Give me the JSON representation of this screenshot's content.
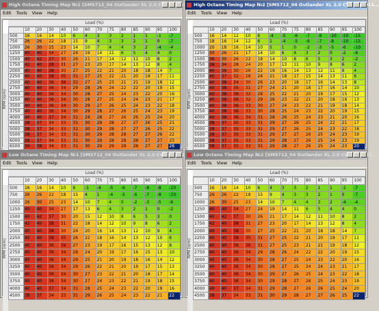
{
  "windows": [
    {
      "title": "High Octane Timing Map №1 [SMS712_04 Outlander XL 2.0 CVT MY2011...",
      "menu": [
        "Edit",
        "Tools",
        "View",
        "Help"
      ],
      "load_label": "Load (%)",
      "rpm_label": "RPM (rpm)",
      "columns": [
        10,
        20,
        30,
        40,
        50,
        60,
        70,
        75,
        80,
        85,
        90,
        95,
        100
      ],
      "rows": [
        500,
        750,
        1000,
        1250,
        1500,
        1750,
        2000,
        2250,
        2500,
        2750,
        3000,
        3250,
        3500,
        3750,
        4000,
        4500,
        5000,
        5500,
        6000,
        6500
      ],
      "values": [
        [
          16,
          16,
          14,
          10,
          6,
          4,
          3,
          3,
          2,
          1,
          1,
          -1,
          -7
        ],
        [
          26,
          26,
          22,
          18,
          15,
          9,
          4,
          3,
          3,
          2,
          1,
          0,
          -7
        ],
        [
          26,
          30,
          25,
          23,
          14,
          10,
          7,
          4,
          4,
          3,
          2,
          -4,
          -4
        ],
        [
          40,
          40,
          34,
          27,
          24,
          19,
          14,
          11,
          6,
          5,
          4,
          4,
          0
        ],
        [
          40,
          42,
          37,
          30,
          26,
          21,
          17,
          14,
          12,
          11,
          10,
          8,
          2
        ],
        [
          42,
          40,
          38,
          31,
          27,
          23,
          20,
          17,
          14,
          13,
          12,
          8,
          4
        ],
        [
          40,
          40,
          38,
          30,
          27,
          25,
          22,
          21,
          20,
          18,
          18,
          14,
          7
        ],
        [
          40,
          40,
          38,
          35,
          31,
          27,
          25,
          22,
          21,
          20,
          19,
          17,
          11
        ],
        [
          40,
          40,
          36,
          36,
          31,
          27,
          25,
          23,
          21,
          21,
          19,
          18,
          12
        ],
        [
          40,
          40,
          36,
          34,
          29,
          28,
          26,
          24,
          22,
          22,
          20,
          19,
          15
        ],
        [
          40,
          40,
          36,
          34,
          30,
          28,
          27,
          25,
          24,
          23,
          22,
          20,
          16
        ],
        [
          40,
          40,
          36,
          34,
          30,
          28,
          27,
          25,
          24,
          24,
          23,
          21,
          17
        ],
        [
          40,
          40,
          36,
          34,
          30,
          29,
          27,
          26,
          25,
          24,
          23,
          22,
          18
        ],
        [
          40,
          40,
          36,
          34,
          30,
          29,
          28,
          27,
          26,
          25,
          24,
          23,
          19
        ],
        [
          40,
          40,
          37,
          34,
          31,
          29,
          28,
          27,
          26,
          26,
          25,
          24,
          20
        ],
        [
          38,
          37,
          34,
          33,
          31,
          30,
          29,
          28,
          27,
          27,
          26,
          25,
          21
        ],
        [
          38,
          37,
          34,
          33,
          31,
          30,
          29,
          28,
          27,
          27,
          26,
          25,
          22
        ],
        [
          38,
          37,
          34,
          33,
          31,
          30,
          29,
          28,
          28,
          27,
          27,
          26,
          22
        ],
        [
          38,
          37,
          34,
          33,
          31,
          30,
          29,
          28,
          28,
          28,
          27,
          27,
          23
        ],
        [
          39,
          38,
          34,
          33,
          31,
          30,
          29,
          29,
          28,
          28,
          27,
          27,
          28
        ]
      ]
    },
    {
      "title": "High Octane Timing Map №2 [SMS712_04 Outlander XL 2.0 CVT MY2011...",
      "menu": [
        "Edit",
        "Tools",
        "View",
        "Help"
      ],
      "load_label": "Load (%)",
      "rpm_label": "RPM (rpm)",
      "columns": [
        10,
        20,
        30,
        40,
        50,
        60,
        70,
        75,
        80,
        85,
        90,
        95,
        100
      ],
      "rows": [
        500,
        750,
        1000,
        1250,
        1500,
        1750,
        2000,
        2250,
        2500,
        2750,
        3000,
        3250,
        3500,
        3750,
        4000,
        4500,
        5000,
        5500,
        6000,
        6500
      ],
      "values": [
        [
          16,
          14,
          12,
          10,
          6,
          -4,
          -5,
          -6,
          -7,
          -8,
          -10,
          -10,
          -15
        ],
        [
          18,
          16,
          14,
          12,
          6,
          1,
          -4,
          -5,
          -6,
          -7,
          -8,
          -10,
          -15
        ],
        [
          20,
          18,
          16,
          14,
          10,
          5,
          1,
          0,
          -2,
          -3,
          -5,
          -6,
          -10
        ],
        [
          30,
          26,
          21,
          17,
          14,
          10,
          6,
          4,
          3,
          2,
          0,
          -2,
          -6
        ],
        [
          36,
          30,
          26,
          22,
          18,
          14,
          10,
          8,
          6,
          5,
          3,
          2,
          -2
        ],
        [
          38,
          34,
          28,
          24,
          20,
          17,
          13,
          11,
          10,
          9,
          8,
          6,
          2
        ],
        [
          40,
          36,
          30,
          26,
          22,
          19,
          16,
          14,
          13,
          12,
          11,
          9,
          4
        ],
        [
          40,
          37,
          32,
          28,
          24,
          21,
          18,
          17,
          15,
          14,
          13,
          11,
          6
        ],
        [
          40,
          38,
          34,
          30,
          26,
          23,
          20,
          18,
          17,
          16,
          14,
          13,
          8
        ],
        [
          40,
          38,
          35,
          31,
          27,
          24,
          21,
          20,
          18,
          17,
          16,
          14,
          10
        ],
        [
          40,
          38,
          36,
          32,
          28,
          25,
          22,
          21,
          20,
          19,
          17,
          15,
          12
        ],
        [
          40,
          38,
          36,
          32,
          29,
          26,
          23,
          22,
          21,
          20,
          18,
          16,
          13
        ],
        [
          40,
          38,
          36,
          33,
          30,
          27,
          24,
          23,
          22,
          21,
          19,
          18,
          14
        ],
        [
          40,
          38,
          36,
          33,
          30,
          28,
          25,
          24,
          23,
          22,
          20,
          19,
          15
        ],
        [
          40,
          38,
          36,
          34,
          31,
          28,
          26,
          25,
          24,
          23,
          21,
          20,
          16
        ],
        [
          38,
          37,
          35,
          33,
          31,
          29,
          27,
          26,
          25,
          24,
          22,
          21,
          17
        ],
        [
          38,
          37,
          35,
          33,
          31,
          29,
          27,
          26,
          25,
          24,
          23,
          22,
          18
        ],
        [
          38,
          37,
          35,
          33,
          31,
          29,
          27,
          27,
          26,
          25,
          24,
          23,
          19
        ],
        [
          38,
          37,
          35,
          33,
          31,
          29,
          28,
          27,
          26,
          25,
          24,
          23,
          19
        ],
        [
          38,
          37,
          35,
          33,
          31,
          29,
          28,
          27,
          26,
          25,
          24,
          23,
          20
        ]
      ]
    },
    {
      "title": "Low Octane Timing Map №1 [SMS712_04 Outlander XL 2.0 CVT MY2011...",
      "menu": [
        "Edit",
        "Tools",
        "View",
        "Help"
      ],
      "load_label": "Load (%)",
      "rpm_label": "RPM (rpm)",
      "columns": [
        10,
        20,
        30,
        40,
        50,
        60,
        70,
        75,
        80,
        85,
        90,
        95,
        100
      ],
      "rows": [
        500,
        750,
        1000,
        1250,
        1500,
        1750,
        2000,
        2250,
        2500,
        2750,
        3000,
        3250,
        3500,
        3750,
        4000,
        4500
      ],
      "values": [
        [
          16,
          16,
          14,
          10,
          6,
          -1,
          -4,
          -5,
          -6,
          -7,
          -8,
          -8,
          -10
        ],
        [
          26,
          26,
          22,
          18,
          15,
          4,
          1,
          -4,
          -5,
          -6,
          -7,
          -8,
          -10
        ],
        [
          26,
          30,
          25,
          23,
          14,
          10,
          7,
          4,
          0,
          -2,
          -3,
          -5,
          -6
        ],
        [
          40,
          40,
          34,
          27,
          17,
          13,
          6,
          4,
          3,
          2,
          1,
          0,
          -2
        ],
        [
          40,
          42,
          37,
          30,
          20,
          15,
          12,
          10,
          8,
          6,
          5,
          3,
          0
        ],
        [
          42,
          40,
          38,
          31,
          22,
          18,
          14,
          12,
          10,
          9,
          8,
          6,
          2
        ],
        [
          40,
          40,
          38,
          30,
          24,
          20,
          16,
          14,
          13,
          12,
          10,
          9,
          4
        ],
        [
          40,
          40,
          38,
          35,
          26,
          22,
          18,
          16,
          14,
          13,
          12,
          10,
          6
        ],
        [
          40,
          40,
          36,
          36,
          27,
          23,
          19,
          17,
          16,
          15,
          13,
          12,
          8
        ],
        [
          40,
          40,
          36,
          34,
          28,
          24,
          20,
          19,
          17,
          16,
          15,
          13,
          10
        ],
        [
          40,
          40,
          36,
          34,
          29,
          25,
          21,
          20,
          19,
          18,
          16,
          14,
          12
        ],
        [
          40,
          40,
          36,
          34,
          29,
          26,
          22,
          21,
          20,
          19,
          17,
          15,
          13
        ],
        [
          40,
          40,
          36,
          34,
          30,
          27,
          23,
          22,
          21,
          20,
          18,
          17,
          14
        ],
        [
          40,
          40,
          36,
          34,
          30,
          27,
          24,
          23,
          22,
          21,
          19,
          18,
          15
        ],
        [
          40,
          40,
          37,
          34,
          31,
          28,
          25,
          24,
          23,
          22,
          20,
          19,
          16
        ],
        [
          38,
          37,
          34,
          33,
          31,
          29,
          26,
          25,
          24,
          23,
          22,
          21,
          22
        ]
      ]
    },
    {
      "title": "Low Octane Timing Map №2 [SMS712_04 Outlander XL 2.0 CVT MY2011...",
      "menu": [
        "Edit",
        "Tools",
        "View",
        "Help"
      ],
      "load_label": "Load (%)",
      "rpm_label": "RPM (rpm)",
      "columns": [
        10,
        20,
        30,
        40,
        50,
        60,
        70,
        75,
        80,
        85,
        90,
        95,
        100
      ],
      "rows": [
        500,
        750,
        1000,
        1250,
        1500,
        1750,
        2000,
        2250,
        2500,
        2750,
        3000,
        3250,
        3500,
        3750,
        4000,
        4500
      ],
      "values": [
        [
          16,
          16,
          14,
          10,
          6,
          4,
          3,
          3,
          2,
          1,
          1,
          -1,
          -7
        ],
        [
          26,
          26,
          22,
          18,
          15,
          9,
          4,
          3,
          3,
          2,
          1,
          0,
          -7
        ],
        [
          26,
          30,
          25,
          23,
          14,
          10,
          7,
          4,
          4,
          3,
          2,
          -4,
          -4
        ],
        [
          40,
          40,
          34,
          27,
          24,
          19,
          14,
          11,
          6,
          5,
          4,
          4,
          0
        ],
        [
          40,
          42,
          37,
          30,
          26,
          21,
          17,
          14,
          12,
          11,
          10,
          8,
          2
        ],
        [
          42,
          40,
          38,
          31,
          27,
          23,
          20,
          17,
          14,
          13,
          12,
          8,
          4
        ],
        [
          40,
          40,
          38,
          30,
          27,
          25,
          22,
          21,
          20,
          18,
          18,
          14,
          7
        ],
        [
          40,
          40,
          38,
          35,
          31,
          27,
          25,
          22,
          21,
          20,
          19,
          17,
          11
        ],
        [
          40,
          40,
          36,
          36,
          31,
          27,
          25,
          23,
          21,
          21,
          19,
          18,
          12
        ],
        [
          40,
          40,
          36,
          34,
          29,
          28,
          26,
          24,
          22,
          22,
          20,
          19,
          15
        ],
        [
          40,
          40,
          36,
          34,
          30,
          28,
          27,
          25,
          24,
          23,
          22,
          20,
          16
        ],
        [
          40,
          40,
          36,
          34,
          30,
          28,
          27,
          25,
          24,
          24,
          23,
          21,
          17
        ],
        [
          40,
          40,
          36,
          34,
          30,
          29,
          27,
          26,
          25,
          24,
          23,
          22,
          18
        ],
        [
          40,
          40,
          36,
          34,
          30,
          29,
          28,
          27,
          26,
          25,
          24,
          23,
          19
        ],
        [
          40,
          40,
          37,
          34,
          31,
          29,
          28,
          27,
          26,
          26,
          25,
          24,
          20
        ],
        [
          38,
          37,
          34,
          33,
          31,
          30,
          29,
          28,
          27,
          27,
          26,
          25,
          22
        ]
      ]
    }
  ]
}
